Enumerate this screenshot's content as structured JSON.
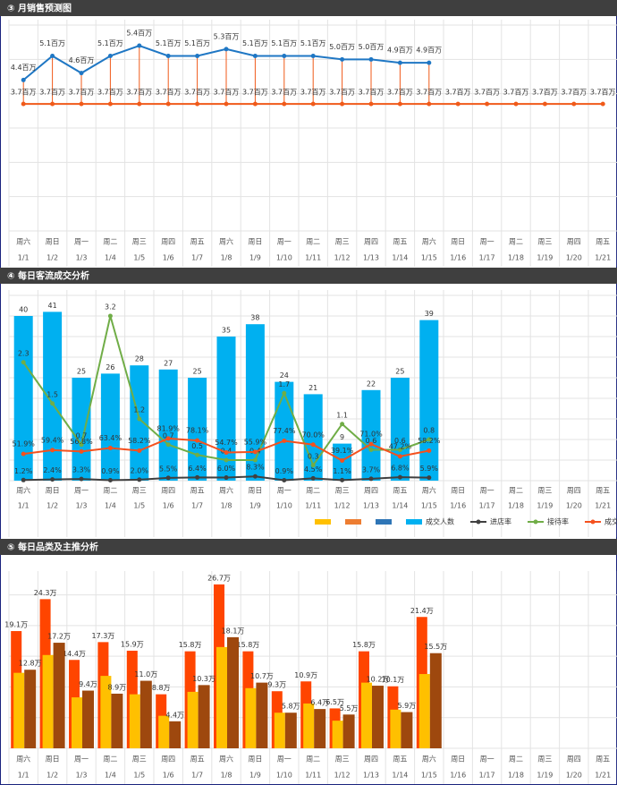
{
  "chart_data": [
    {
      "type": "line",
      "title": "③ 月销售预测图",
      "weekdays": [
        "周六",
        "周日",
        "周一",
        "周二",
        "周三",
        "周四",
        "周五",
        "周六",
        "周日",
        "周一",
        "周二",
        "周三",
        "周四",
        "周五",
        "周六",
        "周日",
        "周一",
        "周二",
        "周三",
        "周四",
        "周五"
      ],
      "categories": [
        "1/1",
        "1/2",
        "1/3",
        "1/4",
        "1/5",
        "1/6",
        "1/7",
        "1/8",
        "1/9",
        "1/10",
        "1/11",
        "1/12",
        "1/13",
        "1/14",
        "1/15",
        "1/16",
        "1/17",
        "1/18",
        "1/19",
        "1/20",
        "1/21"
      ],
      "series": [
        {
          "color": "#1f77c4",
          "values": [
            4.4,
            5.1,
            4.6,
            5.1,
            5.4,
            5.1,
            5.1,
            5.3,
            5.1,
            5.1,
            5.1,
            5.0,
            5.0,
            4.9,
            4.9,
            null,
            null,
            null,
            null,
            null,
            null
          ],
          "value_labels": [
            "4.4百万",
            "5.1百万",
            "4.6百万",
            "5.1百万",
            "5.4百万",
            "5.1百万",
            "5.1百万",
            "5.3百万",
            "5.1百万",
            "5.1百万",
            "5.1百万",
            "5.0百万",
            "5.0百万",
            "4.9百万",
            "4.9百万",
            null,
            null,
            null,
            null,
            null,
            null
          ]
        },
        {
          "color": "#f05a1a",
          "values": [
            3.7,
            3.7,
            3.7,
            3.7,
            3.7,
            3.7,
            3.7,
            3.7,
            3.7,
            3.7,
            3.7,
            3.7,
            3.7,
            3.7,
            3.7,
            3.7,
            3.7,
            3.7,
            3.7,
            3.7,
            3.7
          ],
          "value_labels": [
            "3.7百万",
            "3.7百万",
            "3.7百万",
            "3.7百万",
            "3.7百万",
            "3.7百万",
            "3.7百万",
            "3.7百万",
            "3.7百万",
            "3.7百万",
            "3.7百万",
            "3.7百万",
            "3.7百万",
            "3.7百万",
            "3.7百万",
            "3.7百万",
            "3.7百万",
            "3.7百万",
            "3.7百万",
            "3.7百万",
            "3.7百万"
          ]
        }
      ],
      "ylim": [
        0,
        6
      ],
      "yticks": [
        0,
        1,
        2,
        3,
        4,
        5,
        6
      ],
      "grid": true
    },
    {
      "type": "bar_line",
      "title": "④ 每日客流成交分析",
      "weekdays": [
        "周六",
        "周日",
        "周一",
        "周二",
        "周三",
        "周四",
        "周五",
        "周六",
        "周日",
        "周一",
        "周二",
        "周三",
        "周四",
        "周五",
        "周六",
        "周日",
        "周一",
        "周二",
        "周三",
        "周四",
        "周五"
      ],
      "categories": [
        "1/1",
        "1/2",
        "1/3",
        "1/4",
        "1/5",
        "1/6",
        "1/7",
        "1/8",
        "1/9",
        "1/10",
        "1/11",
        "1/12",
        "1/13",
        "1/14",
        "1/15",
        "1/16",
        "1/17",
        "1/18",
        "1/19",
        "1/20",
        "1/21"
      ],
      "legend_colors": [
        "#ffc000",
        "#ed7d31",
        "#2e75b6"
      ],
      "series": [
        {
          "name": "成交人数",
          "color": "#00b0f0",
          "values": [
            40,
            41,
            25,
            26,
            28,
            27,
            25,
            35,
            38,
            24,
            21,
            9,
            22,
            25,
            39,
            null,
            null,
            null,
            null,
            null,
            null
          ]
        },
        {
          "name": "进店率",
          "color": "#404040",
          "axis": "y2",
          "values": [
            0.012,
            0.024,
            0.033,
            0.009,
            0.02,
            0.055,
            0.064,
            0.06,
            0.083,
            0.009,
            0.045,
            0.011,
            0.037,
            0.068,
            0.059,
            null,
            null,
            null,
            null,
            null,
            null
          ],
          "value_labels": [
            "1.2%",
            "2.4%",
            "3.3%",
            "0.9%",
            "2.0%",
            "5.5%",
            "6.4%",
            "6.0%",
            "8.3%",
            "0.9%",
            "4.5%",
            "1.1%",
            "3.7%",
            "6.8%",
            "5.9%",
            null,
            null,
            null,
            null,
            null,
            null
          ]
        },
        {
          "name": "接待率",
          "color": "#70ad47",
          "axis": "y2",
          "values": [
            2.3,
            1.5,
            0.7,
            3.2,
            1.2,
            0.7,
            0.5,
            0.4,
            0.4,
            1.7,
            0.3,
            1.1,
            0.6,
            0.6,
            0.8,
            null,
            null,
            null,
            null,
            null,
            null
          ]
        },
        {
          "name": "成交率",
          "color": "#f4511e",
          "axis": "y2",
          "values": [
            0.519,
            0.594,
            0.568,
            0.634,
            0.582,
            0.819,
            0.781,
            0.547,
            0.559,
            0.774,
            0.7,
            0.391,
            0.71,
            0.472,
            0.582,
            null,
            null,
            null,
            null,
            null,
            null
          ],
          "value_labels": [
            "51.9%",
            "59.4%",
            "56.8%",
            "63.4%",
            "58.2%",
            "81.9%",
            "78.1%",
            "54.7%",
            "55.9%",
            "77.4%",
            "70.0%",
            "39.1%",
            "71.0%",
            "47.2%",
            "58.2%",
            null,
            null,
            null,
            null,
            null,
            null
          ]
        }
      ],
      "ylim": [
        0,
        45
      ],
      "yticks": [
        0,
        5,
        10,
        15,
        20,
        25,
        30,
        35,
        40,
        45
      ],
      "y2lim": [
        0,
        3.6
      ],
      "grid": true
    },
    {
      "type": "grouped_bar",
      "title": "⑤ 每日品类及主推分析",
      "weekdays": [
        "周六",
        "周日",
        "周一",
        "周二",
        "周三",
        "周四",
        "周五",
        "周六",
        "周日",
        "周一",
        "周二",
        "周三",
        "周四",
        "周五",
        "周六",
        "周日",
        "周一",
        "周二",
        "周三",
        "周四",
        "周五"
      ],
      "categories": [
        "1/1",
        "1/2",
        "1/3",
        "1/4",
        "1/5",
        "1/6",
        "1/7",
        "1/8",
        "1/9",
        "1/10",
        "1/11",
        "1/12",
        "1/13",
        "1/14",
        "1/15",
        "1/16",
        "1/17",
        "1/18",
        "1/19",
        "1/20",
        "1/21"
      ],
      "series": [
        {
          "color": "#ff4500",
          "values": [
            19.1,
            24.3,
            14.4,
            17.3,
            15.9,
            8.8,
            15.8,
            26.7,
            15.8,
            9.3,
            10.9,
            6.5,
            15.8,
            10.1,
            21.4,
            null,
            null,
            null,
            null,
            null,
            null
          ],
          "value_labels": [
            "19.1万",
            "24.3万",
            "14.4万",
            "17.3万",
            "15.9万",
            "8.8万",
            "15.8万",
            "26.7万",
            "15.8万",
            "9.3万",
            "10.9万",
            "6.5万",
            "15.8万",
            "10.1万",
            "21.4万",
            null,
            null,
            null,
            null,
            null,
            null
          ]
        },
        {
          "color": "#ffc000",
          "values": [
            12.3,
            15.2,
            8.3,
            11.8,
            8.8,
            5.3,
            9.2,
            16.5,
            9.8,
            5.8,
            7.3,
            4.5,
            10.7,
            6.3,
            12.1,
            null,
            null,
            null,
            null,
            null,
            null
          ]
        },
        {
          "color": "#9e480e",
          "values": [
            12.8,
            17.2,
            9.4,
            8.9,
            11.0,
            4.4,
            10.3,
            18.1,
            10.7,
            5.8,
            6.4,
            5.5,
            10.2,
            5.9,
            15.5,
            null,
            null,
            null,
            null,
            null,
            null
          ],
          "value_labels": [
            "12.8万",
            "17.2万",
            "9.4万",
            "8.9万",
            "11.0万",
            "4.4万",
            "10.3万",
            "18.1万",
            "10.7万",
            "5.8万",
            "6.4万",
            "5.5万",
            "10.2万",
            "5.9万",
            "15.5万",
            null,
            null,
            null,
            null,
            null,
            null
          ]
        }
      ],
      "ylim": [
        0,
        28
      ],
      "yticks": [
        0,
        5,
        10,
        15,
        20,
        25
      ],
      "grid": true
    }
  ]
}
